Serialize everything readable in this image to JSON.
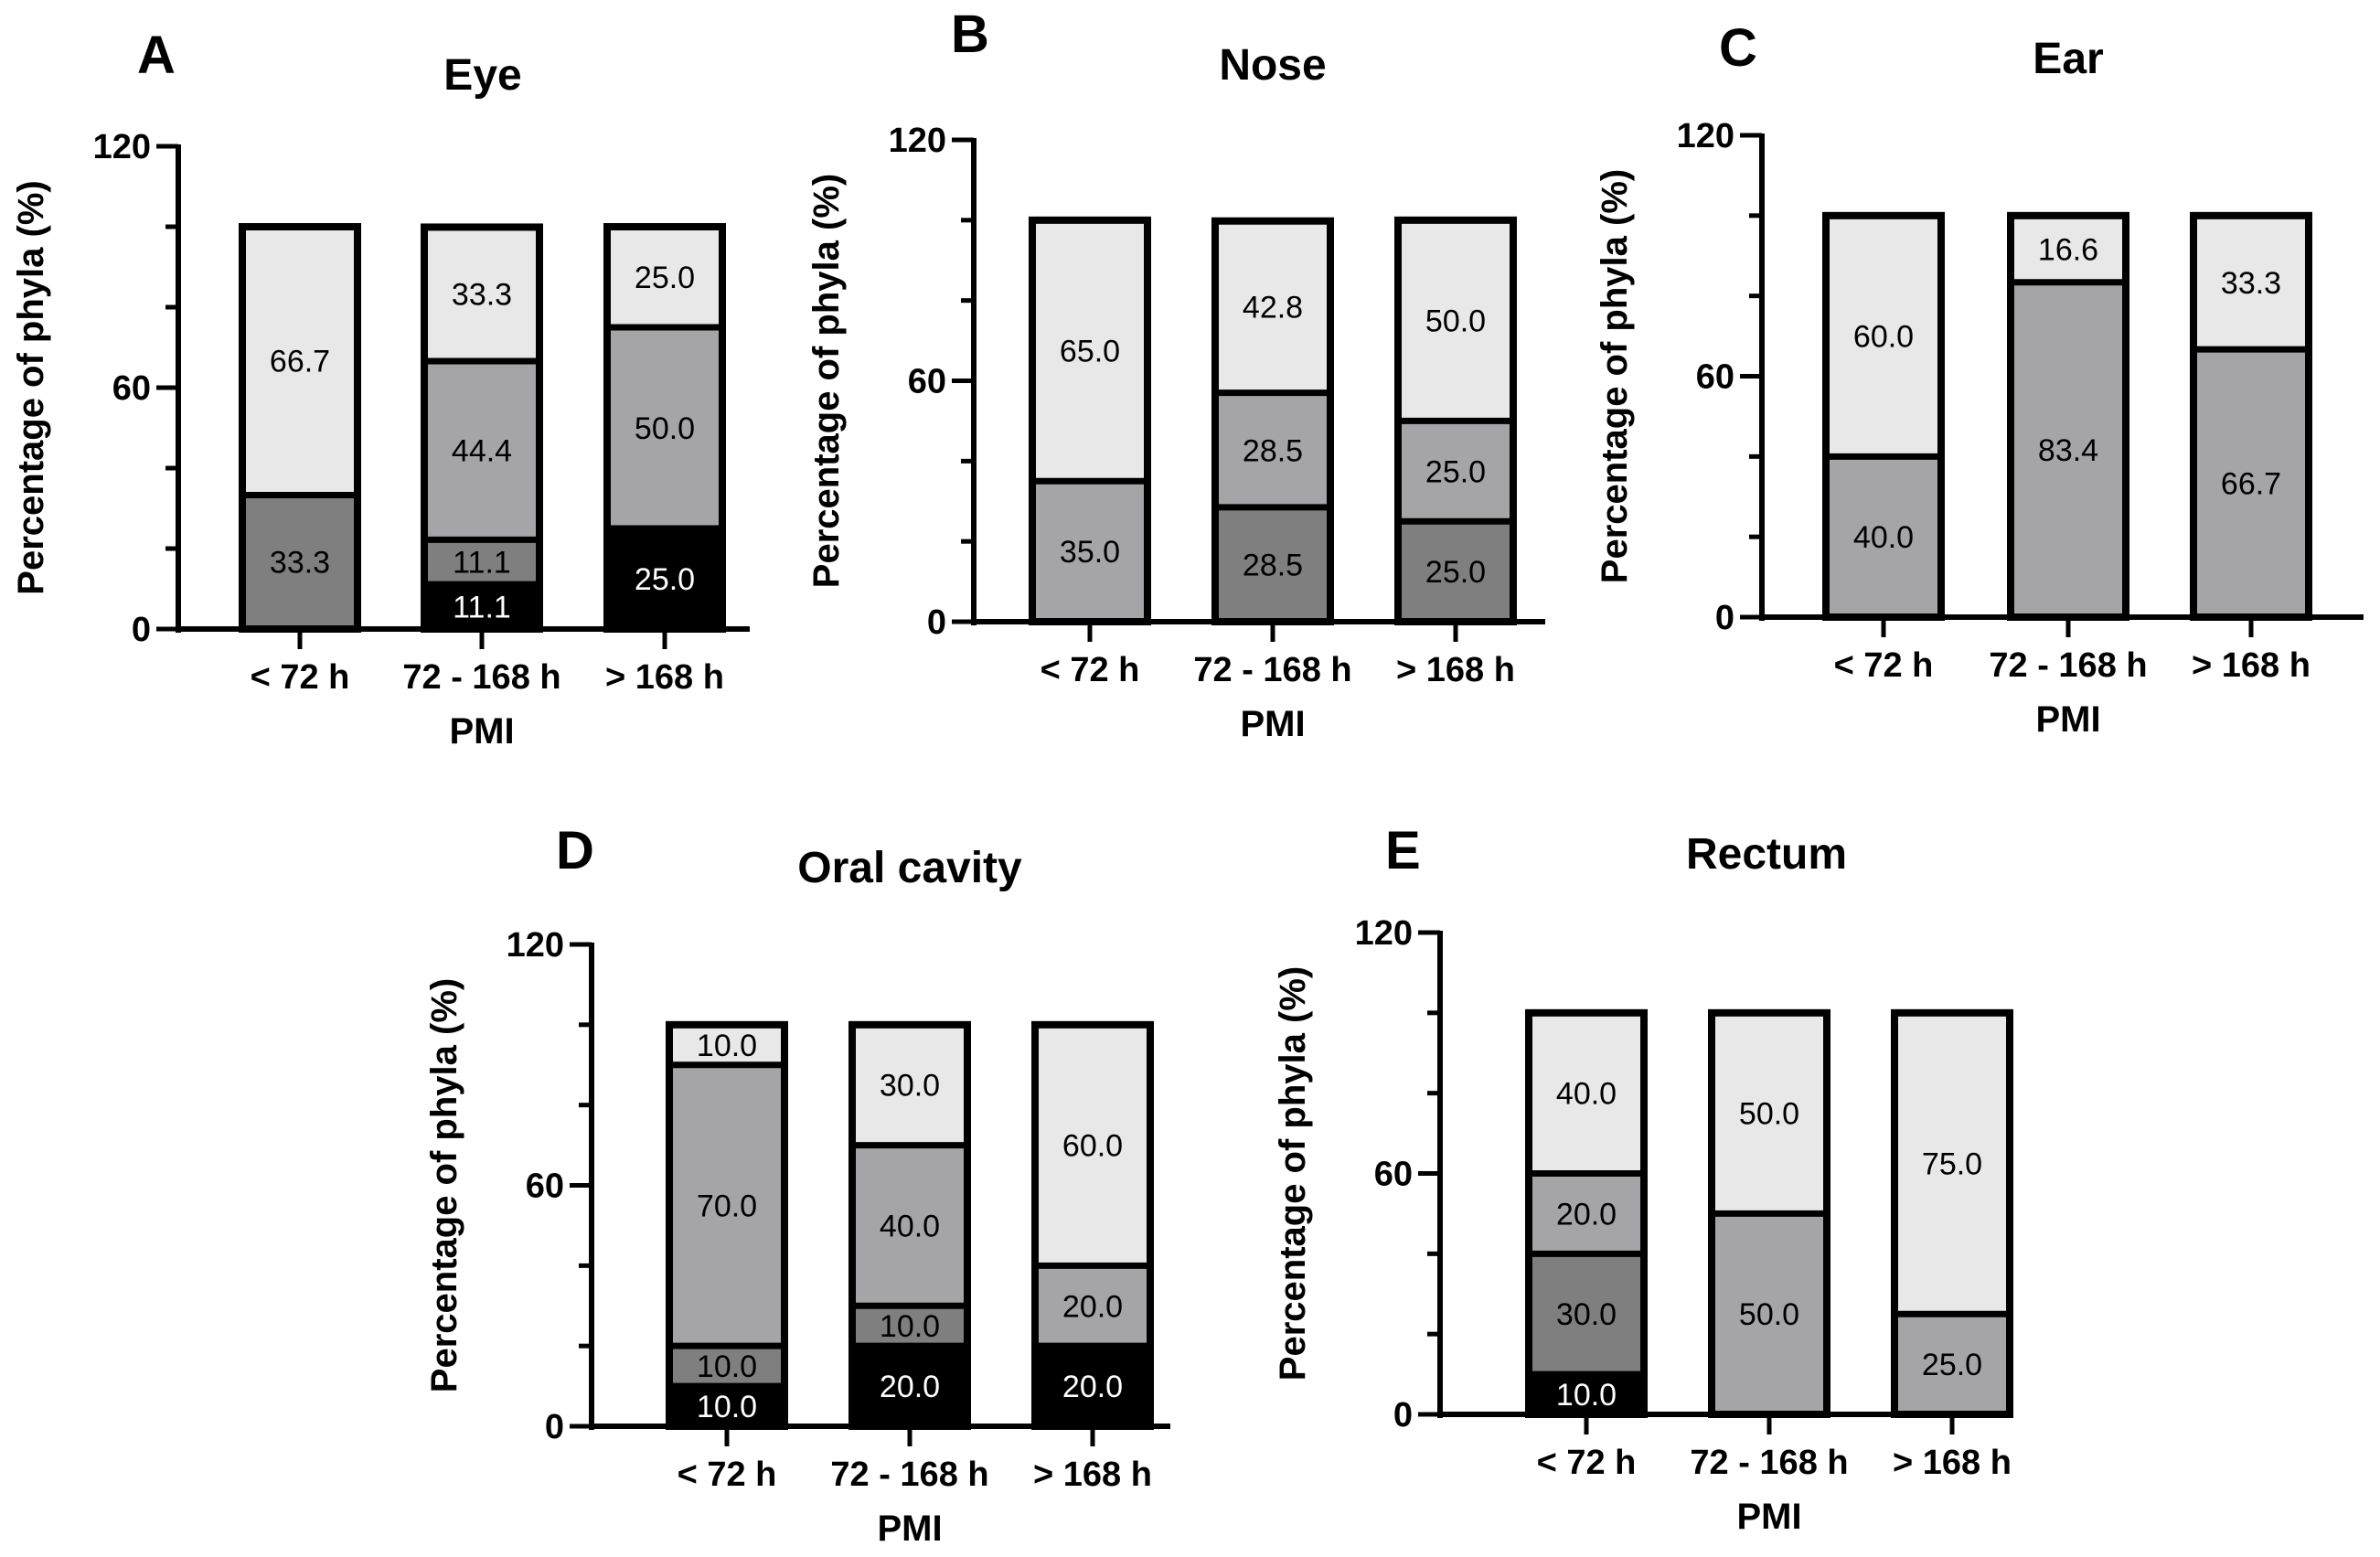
{
  "figure": {
    "panel_labels": [
      "A",
      "B",
      "C",
      "D",
      "E"
    ]
  },
  "colors": {
    "black": "#000000",
    "dark_gray": "#7f7f7f",
    "mid_gray": "#a5a5a7",
    "light_gray": "#e8e8e8"
  },
  "chart_data": [
    {
      "panel": "A",
      "type": "bar",
      "stacked": true,
      "title": "Eye",
      "xlabel": "PMI",
      "ylabel": "Percentage of phyla (%)",
      "ylim": [
        0,
        120
      ],
      "yticks": [
        0,
        60,
        120
      ],
      "categories": [
        "< 72 h",
        "72 - 168 h",
        "> 168 h"
      ],
      "bars": [
        [
          {
            "value": 33.3,
            "label": "33.3",
            "color": "dark_gray"
          },
          {
            "value": 66.7,
            "label": "66.7",
            "color": "light_gray"
          }
        ],
        [
          {
            "value": 11.1,
            "label": "11.1",
            "color": "black"
          },
          {
            "value": 11.1,
            "label": "11.1",
            "color": "dark_gray"
          },
          {
            "value": 44.4,
            "label": "44.4",
            "color": "mid_gray"
          },
          {
            "value": 33.3,
            "label": "33.3",
            "color": "light_gray"
          }
        ],
        [
          {
            "value": 25.0,
            "label": "25.0",
            "color": "black"
          },
          {
            "value": 50.0,
            "label": "50.0",
            "color": "mid_gray"
          },
          {
            "value": 25.0,
            "label": "25.0",
            "color": "light_gray"
          }
        ]
      ]
    },
    {
      "panel": "B",
      "type": "bar",
      "stacked": true,
      "title": "Nose",
      "xlabel": "PMI",
      "ylabel": "Percentage of phyla (%)",
      "ylim": [
        0,
        120
      ],
      "yticks": [
        0,
        60,
        120
      ],
      "categories": [
        "< 72 h",
        "72 - 168 h",
        "> 168 h"
      ],
      "bars": [
        [
          {
            "value": 35.0,
            "label": "35.0",
            "color": "mid_gray"
          },
          {
            "value": 65.0,
            "label": "65.0",
            "color": "light_gray"
          }
        ],
        [
          {
            "value": 28.5,
            "label": "28.5",
            "color": "dark_gray"
          },
          {
            "value": 28.5,
            "label": "28.5",
            "color": "mid_gray"
          },
          {
            "value": 42.8,
            "label": "42.8",
            "color": "light_gray"
          }
        ],
        [
          {
            "value": 25.0,
            "label": "25.0",
            "color": "dark_gray"
          },
          {
            "value": 25.0,
            "label": "25.0",
            "color": "mid_gray"
          },
          {
            "value": 50.0,
            "label": "50.0",
            "color": "light_gray"
          }
        ]
      ]
    },
    {
      "panel": "C",
      "type": "bar",
      "stacked": true,
      "title": "Ear",
      "xlabel": "PMI",
      "ylabel": "Percentage of phyla (%)",
      "ylim": [
        0,
        120
      ],
      "yticks": [
        0,
        60,
        120
      ],
      "categories": [
        "< 72 h",
        "72 - 168 h",
        "> 168 h"
      ],
      "bars": [
        [
          {
            "value": 40.0,
            "label": "40.0",
            "color": "mid_gray"
          },
          {
            "value": 60.0,
            "label": "60.0",
            "color": "light_gray"
          }
        ],
        [
          {
            "value": 83.4,
            "label": "83.4",
            "color": "mid_gray"
          },
          {
            "value": 16.6,
            "label": "16.6",
            "color": "light_gray"
          }
        ],
        [
          {
            "value": 66.7,
            "label": "66.7",
            "color": "mid_gray"
          },
          {
            "value": 33.3,
            "label": "33.3",
            "color": "light_gray"
          }
        ]
      ]
    },
    {
      "panel": "D",
      "type": "bar",
      "stacked": true,
      "title": "Oral cavity",
      "xlabel": "PMI",
      "ylabel": "Percentage of phyla (%)",
      "ylim": [
        0,
        120
      ],
      "yticks": [
        0,
        60,
        120
      ],
      "categories": [
        "< 72 h",
        "72 - 168 h",
        "> 168 h"
      ],
      "bars": [
        [
          {
            "value": 10.0,
            "label": "10.0",
            "color": "black"
          },
          {
            "value": 10.0,
            "label": "10.0",
            "color": "dark_gray"
          },
          {
            "value": 70.0,
            "label": "70.0",
            "color": "mid_gray"
          },
          {
            "value": 10.0,
            "label": "10.0",
            "color": "light_gray"
          }
        ],
        [
          {
            "value": 20.0,
            "label": "20.0",
            "color": "black"
          },
          {
            "value": 10.0,
            "label": "10.0",
            "color": "dark_gray"
          },
          {
            "value": 40.0,
            "label": "40.0",
            "color": "mid_gray"
          },
          {
            "value": 30.0,
            "label": "30.0",
            "color": "light_gray"
          }
        ],
        [
          {
            "value": 20.0,
            "label": "20.0",
            "color": "black"
          },
          {
            "value": 20.0,
            "label": "20.0",
            "color": "mid_gray"
          },
          {
            "value": 60.0,
            "label": "60.0",
            "color": "light_gray"
          }
        ]
      ]
    },
    {
      "panel": "E",
      "type": "bar",
      "stacked": true,
      "title": "Rectum",
      "xlabel": "PMI",
      "ylabel": "Percentage of phyla (%)",
      "ylim": [
        0,
        120
      ],
      "yticks": [
        0,
        60,
        120
      ],
      "categories": [
        "< 72 h",
        "72 - 168 h",
        "> 168 h"
      ],
      "bars": [
        [
          {
            "value": 10.0,
            "label": "10.0",
            "color": "black"
          },
          {
            "value": 30.0,
            "label": "30.0",
            "color": "dark_gray"
          },
          {
            "value": 20.0,
            "label": "20.0",
            "color": "mid_gray"
          },
          {
            "value": 40.0,
            "label": "40.0",
            "color": "light_gray"
          }
        ],
        [
          {
            "value": 50.0,
            "label": "50.0",
            "color": "mid_gray"
          },
          {
            "value": 50.0,
            "label": "50.0",
            "color": "light_gray"
          }
        ],
        [
          {
            "value": 25.0,
            "label": "25.0",
            "color": "mid_gray"
          },
          {
            "value": 75.0,
            "label": "75.0",
            "color": "light_gray"
          }
        ]
      ]
    }
  ]
}
